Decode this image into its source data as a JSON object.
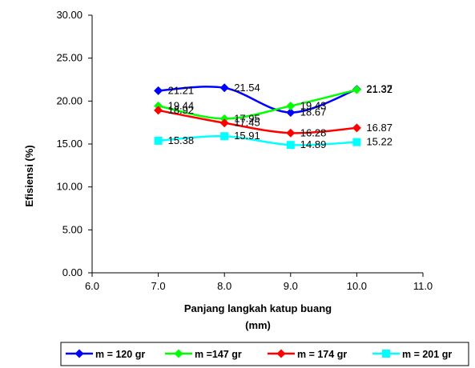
{
  "chart_data": {
    "type": "line",
    "title": "",
    "xlabel_line1": "Panjang langkah katup buang",
    "xlabel_line2": "(mm)",
    "ylabel": "Efisiensi (%)",
    "xlim": [
      6.0,
      11.0
    ],
    "ylim": [
      0.0,
      30.0
    ],
    "xticks": [
      "6.0",
      "7.0",
      "8.0",
      "9.0",
      "10.0",
      "11.0"
    ],
    "yticks": [
      "0.00",
      "5.00",
      "10.00",
      "15.00",
      "20.00",
      "25.00",
      "30.00"
    ],
    "grid": false,
    "legend_position": "bottom",
    "series": [
      {
        "name": "m = 120 gr",
        "color": "#0000ff",
        "marker": "diamond",
        "x": [
          7.0,
          8.0,
          9.0,
          10.0
        ],
        "values": [
          21.21,
          21.54,
          18.67,
          21.37
        ],
        "labels": [
          "21.21",
          "21.54",
          "18.67",
          "21.37"
        ]
      },
      {
        "name": "m =147 gr",
        "color": "#00ff00",
        "marker": "diamond",
        "x": [
          7.0,
          8.0,
          9.0,
          10.0
        ],
        "values": [
          19.44,
          17.95,
          19.43,
          21.32
        ],
        "labels": [
          "19.44",
          "17.95",
          "19.43",
          "21.32"
        ]
      },
      {
        "name": "m = 174 gr",
        "color": "#ff0000",
        "marker": "diamond",
        "x": [
          7.0,
          8.0,
          9.0,
          10.0
        ],
        "values": [
          18.92,
          17.45,
          16.28,
          16.87
        ],
        "labels": [
          "18.92",
          "17.45",
          "16.28",
          "16.87"
        ]
      },
      {
        "name": "m = 201 gr",
        "color": "#00ffff",
        "marker": "square",
        "x": [
          7.0,
          8.0,
          9.0,
          10.0
        ],
        "values": [
          15.38,
          15.91,
          14.89,
          15.22
        ],
        "labels": [
          "15.38",
          "15.91",
          "14.89",
          "15.22"
        ]
      }
    ]
  }
}
